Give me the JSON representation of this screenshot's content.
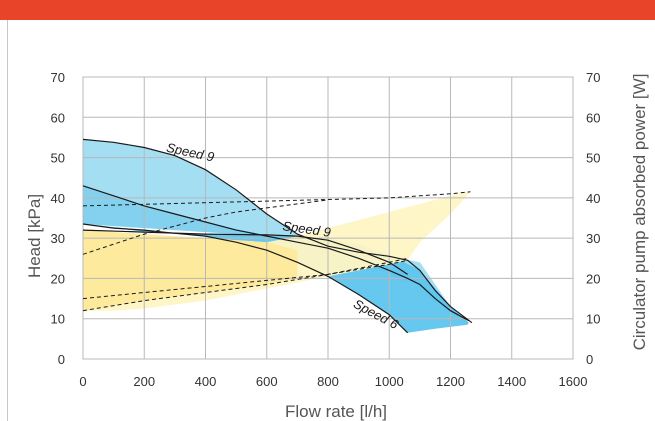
{
  "header": {
    "bar_color": "#e8442a"
  },
  "chart_data": {
    "type": "line",
    "title": "",
    "xlabel": "Flow rate [l/h]",
    "ylabel": "Head [kPa]",
    "y2label": "Circulator pump absorbed power [W]",
    "xlim": [
      0,
      1600
    ],
    "ylim": [
      0,
      70
    ],
    "y2lim": [
      0,
      70
    ],
    "x_ticks": [
      0,
      200,
      400,
      600,
      800,
      1000,
      1200,
      1400,
      1600
    ],
    "y_ticks": [
      0,
      10,
      20,
      30,
      40,
      50,
      60,
      70
    ],
    "y2_ticks": [
      0,
      10,
      20,
      30,
      40,
      50,
      60,
      70
    ],
    "grid": true,
    "colors": {
      "head_band": "#9fdcf2",
      "head_band_mid": "#7ccfee",
      "head_band_low": "#5fc5ee",
      "power_band": "#fff5c4",
      "power_band_low": "#fde99a",
      "curve": "#1a1a1a",
      "grid": "#b8b8b8"
    },
    "bands": [
      {
        "name": "head-band-speed9-max",
        "color": "head_band",
        "x": [
          0,
          100,
          200,
          300,
          400,
          500,
          600,
          700,
          800,
          900,
          1000,
          1100,
          1200,
          1260,
          1255,
          1150,
          1060,
          1000,
          900,
          800,
          700,
          600,
          500,
          400,
          300,
          200,
          100,
          0
        ],
        "y": [
          54.5,
          53.8,
          52.5,
          50.5,
          47,
          42,
          36,
          31,
          28,
          26.5,
          25.5,
          24,
          13,
          9,
          8.5,
          14,
          20,
          22,
          25,
          27.5,
          29,
          30.5,
          32,
          34,
          36,
          38,
          40.5,
          43
        ]
      },
      {
        "name": "head-band-speed9-mid",
        "color": "head_band_mid",
        "x": [
          0,
          200,
          400,
          600,
          700,
          800,
          900,
          1000,
          1060,
          1060,
          1000,
          900,
          800,
          700,
          600,
          500,
          400,
          300,
          200,
          100,
          0
        ],
        "y": [
          43,
          38,
          34,
          30.5,
          29,
          27.5,
          25,
          22,
          20,
          18.5,
          21,
          24,
          26.5,
          28.5,
          30,
          31,
          31.5,
          32,
          32.5,
          33,
          33.5
        ]
      },
      {
        "name": "head-band-speed6",
        "color": "head_band_low",
        "x": [
          0,
          200,
          400,
          500,
          600,
          700,
          800,
          900,
          1000,
          1060,
          1060,
          1150,
          1255,
          1260,
          1200,
          1100,
          1000,
          900,
          800,
          700,
          600,
          500,
          400,
          300,
          200,
          100,
          0
        ],
        "y": [
          33.5,
          32,
          30.5,
          29,
          27,
          24,
          20.5,
          16,
          11,
          6.5,
          6.5,
          7.5,
          8.5,
          9,
          13,
          22,
          26,
          28.5,
          30,
          30.5,
          30.5,
          30.8,
          31,
          31.2,
          31.6,
          32.5,
          33.5
        ]
      },
      {
        "name": "power-band",
        "color": "power_band",
        "x": [
          0,
          100,
          200,
          300,
          400,
          500,
          600,
          700,
          800,
          900,
          1000,
          1100,
          1200,
          1265,
          1200,
          1100,
          1060,
          1000,
          900,
          800,
          700,
          600,
          500,
          400,
          300,
          200,
          100,
          0
        ],
        "y": [
          32,
          31.5,
          31,
          30.5,
          30,
          29.5,
          29,
          30.5,
          32.5,
          34.5,
          36.5,
          38.5,
          40.5,
          41.5,
          36,
          29,
          24.5,
          23.5,
          22,
          20.5,
          19,
          17.5,
          16,
          14.5,
          13.5,
          12.5,
          12,
          12
        ]
      },
      {
        "name": "power-band-low",
        "color": "power_band_low",
        "x": [
          0,
          200,
          400,
          600,
          700,
          700,
          600,
          400,
          200,
          0
        ],
        "y": [
          32,
          31,
          30,
          29,
          27,
          20,
          18.5,
          16.5,
          14.5,
          12
        ]
      }
    ],
    "series": [
      {
        "name": "Speed 9",
        "style": "solid",
        "x": [
          0,
          100,
          200,
          300,
          400,
          500,
          600,
          700,
          800,
          900,
          1000,
          1060,
          1100,
          1150,
          1200,
          1270
        ],
        "y": [
          54.5,
          53.8,
          52.5,
          50.5,
          47,
          42,
          36,
          31,
          28,
          26.5,
          25.5,
          24.5,
          22,
          17,
          13,
          9
        ]
      },
      {
        "name": "Speed 9",
        "style": "solid",
        "x": [
          0,
          100,
          200,
          300,
          400,
          500,
          600,
          700,
          800,
          900,
          1000,
          1060,
          1100,
          1150,
          1200,
          1260
        ],
        "y": [
          43,
          40.5,
          38,
          36,
          34,
          32,
          30.5,
          29,
          27.5,
          25,
          22,
          20,
          18.5,
          15,
          12,
          9.5
        ]
      },
      {
        "name": "Speed 6",
        "style": "solid",
        "x": [
          0,
          100,
          200,
          300,
          400,
          500,
          600,
          700,
          800,
          900,
          1000,
          1060
        ],
        "y": [
          33.5,
          32.5,
          32,
          31.2,
          30.5,
          29,
          27,
          24,
          20.5,
          16,
          11,
          6.5
        ]
      },
      {
        "name": "",
        "style": "solid",
        "x": [
          0,
          200,
          400,
          600,
          700,
          800,
          900,
          1000,
          1060
        ],
        "y": [
          32,
          31.5,
          31,
          30.8,
          30.5,
          29.5,
          27,
          24,
          21
        ]
      },
      {
        "name": "",
        "style": "dashed",
        "x": [
          0,
          100,
          200,
          300,
          400,
          500,
          600,
          700,
          800,
          900,
          1000,
          1100,
          1200,
          1265
        ],
        "y": [
          38,
          38.2,
          38.4,
          38.6,
          38.8,
          39,
          39.2,
          39.4,
          39.6,
          39.8,
          40,
          40.5,
          41,
          41.5
        ]
      },
      {
        "name": "",
        "style": "dashed",
        "x": [
          0,
          100,
          200,
          300,
          400,
          500,
          600,
          700,
          800
        ],
        "y": [
          26,
          28.5,
          31,
          33,
          35,
          36.5,
          37.5,
          38.5,
          39.5
        ]
      },
      {
        "name": "",
        "style": "dashed",
        "x": [
          0,
          200,
          400,
          600,
          800,
          1000,
          1060
        ],
        "y": [
          15,
          16.5,
          18,
          19.5,
          21,
          24,
          25
        ]
      },
      {
        "name": "",
        "style": "dashed",
        "x": [
          0,
          200,
          400,
          600,
          800,
          1000,
          1060
        ],
        "y": [
          12,
          14.5,
          16.5,
          18.5,
          21,
          23.5,
          24.5
        ]
      }
    ],
    "labels": [
      {
        "text": "Speed 9",
        "x": 270,
        "y": 51.5,
        "rotate": 12
      },
      {
        "text": "Speed 9",
        "x": 650,
        "y": 32,
        "rotate": 8
      },
      {
        "text": "Speed 6",
        "x": 880,
        "y": 13,
        "rotate": 28
      }
    ]
  }
}
